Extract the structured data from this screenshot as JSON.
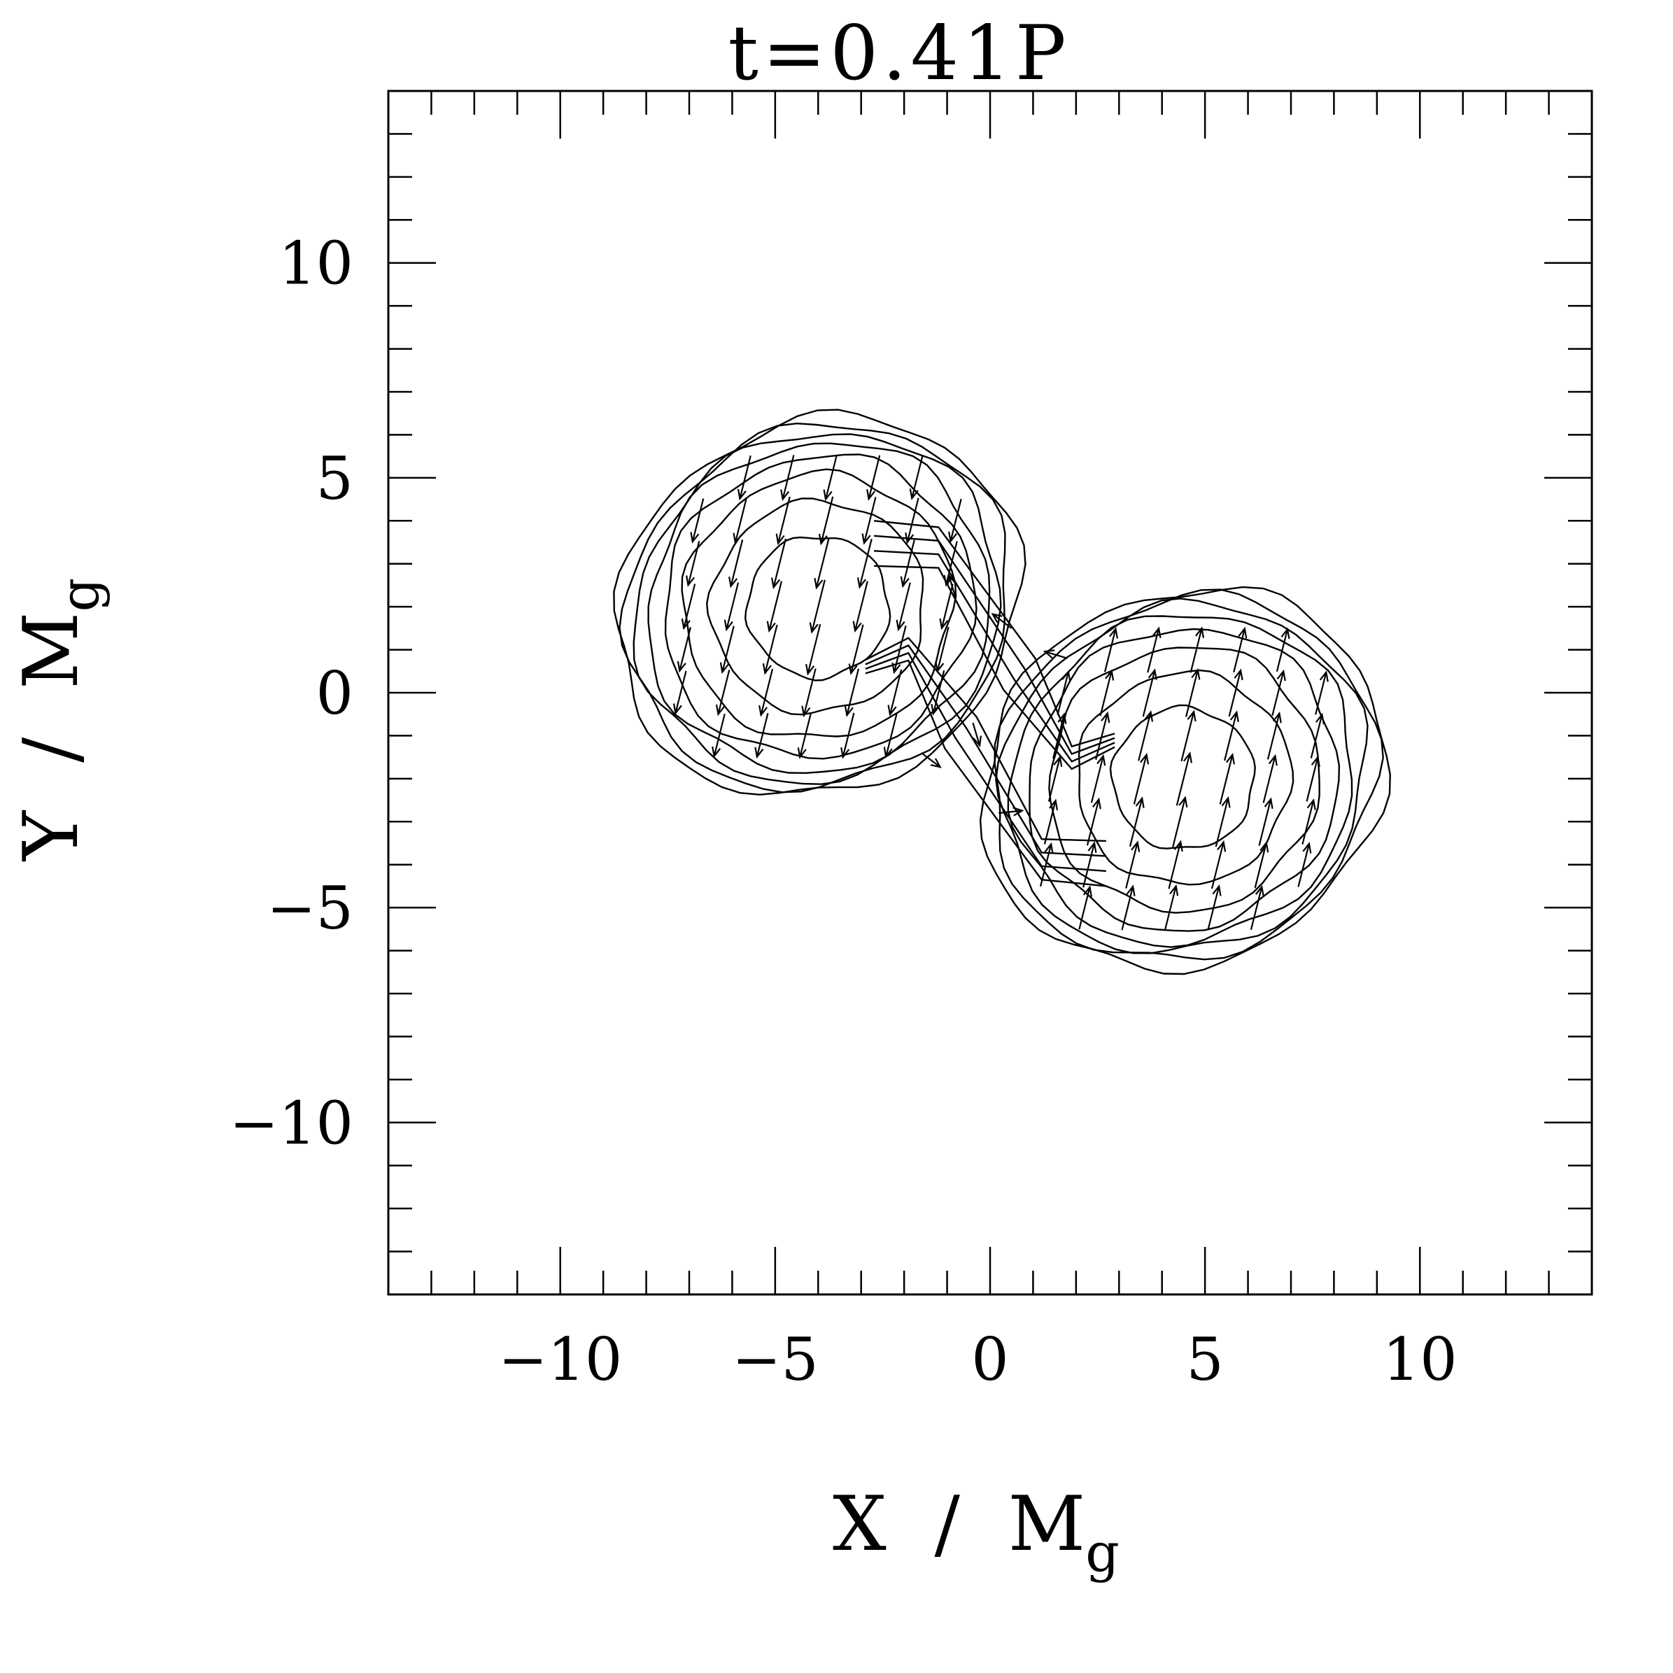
{
  "chart_data": {
    "type": "contour",
    "title": "t=0.41P",
    "xlabel": {
      "main": "X  /  M",
      "sub": "g"
    },
    "ylabel": {
      "main": "Y  /  M",
      "sub": "g"
    },
    "xlim": [
      -14,
      14
    ],
    "ylim": [
      -14,
      14
    ],
    "xticks": [
      {
        "value": -10,
        "label": "−10"
      },
      {
        "value": -5,
        "label": "−5"
      },
      {
        "value": 0,
        "label": "0"
      },
      {
        "value": 5,
        "label": "5"
      },
      {
        "value": 10,
        "label": "10"
      }
    ],
    "yticks": [
      {
        "value": 10,
        "label": "10"
      },
      {
        "value": 5,
        "label": "5"
      },
      {
        "value": 0,
        "label": "0"
      },
      {
        "value": -5,
        "label": "−5"
      },
      {
        "value": -10,
        "label": "−10"
      }
    ],
    "minor_tick_step": 1,
    "grid": false,
    "legend": "none",
    "stars": [
      {
        "name": "",
        "center": [
          -4.0,
          2.0
        ],
        "contour_radii": [
          1.65,
          2.45,
          3.05,
          3.45,
          3.75,
          3.95,
          4.1,
          4.25
        ],
        "velocity": [
          -0.25,
          -1.0
        ]
      },
      {
        "name": "",
        "center": [
          4.5,
          -2.0
        ],
        "contour_radii": [
          1.65,
          2.45,
          3.05,
          3.45,
          3.75,
          3.95,
          4.1,
          4.25
        ],
        "velocity": [
          0.25,
          1.0
        ]
      }
    ],
    "bridge": {
      "description_levels": 4,
      "from": [
        -1.5,
        2.5
      ],
      "to": [
        1.5,
        -3.0
      ]
    }
  }
}
